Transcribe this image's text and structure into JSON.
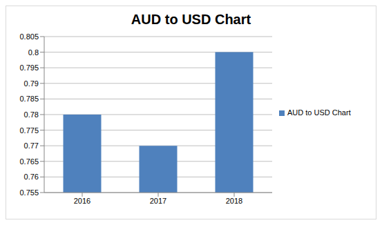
{
  "chart_data": {
    "type": "bar",
    "title": "AUD to USD Chart",
    "categories": [
      "2016",
      "2017",
      "2018"
    ],
    "series": [
      {
        "name": "AUD to USD Chart",
        "color": "#4f81bd",
        "values": [
          0.78,
          0.77,
          0.8
        ]
      }
    ],
    "ylim": [
      0.755,
      0.805
    ],
    "yticks": [
      0.755,
      0.76,
      0.765,
      0.77,
      0.775,
      0.78,
      0.785,
      0.79,
      0.795,
      0.8,
      0.805
    ],
    "grid": true,
    "legend": "right"
  }
}
